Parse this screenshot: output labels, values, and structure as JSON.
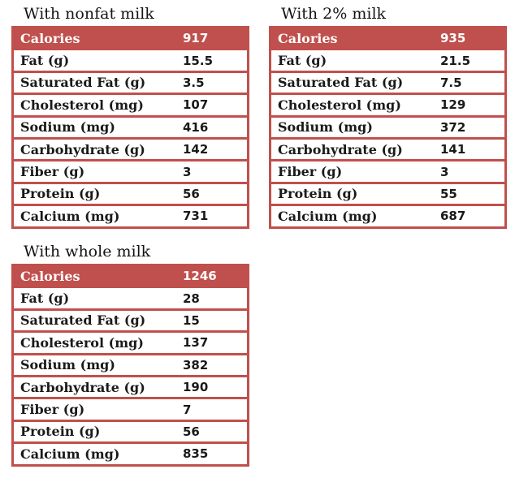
{
  "colors": {
    "accent": "#c0504d",
    "table_border": "#c0504d",
    "header_text": "#ffffff",
    "body_text": "#1a1a1a",
    "background": "#ffffff"
  },
  "chart_data": [
    {
      "type": "table",
      "title": "With nonfat milk",
      "rows": [
        {
          "label": "Calories",
          "value": 917
        },
        {
          "label": "Fat (g)",
          "value": 15.5
        },
        {
          "label": "Saturated Fat (g)",
          "value": 3.5
        },
        {
          "label": "Cholesterol (mg)",
          "value": 107
        },
        {
          "label": "Sodium (mg)",
          "value": 416
        },
        {
          "label": "Carbohydrate (g)",
          "value": 142
        },
        {
          "label": "Fiber (g)",
          "value": 3
        },
        {
          "label": "Protein (g)",
          "value": 56
        },
        {
          "label": "Calcium (mg)",
          "value": 731
        }
      ]
    },
    {
      "type": "table",
      "title": "With 2% milk",
      "rows": [
        {
          "label": "Calories",
          "value": 935
        },
        {
          "label": "Fat (g)",
          "value": 21.5
        },
        {
          "label": "Saturated Fat (g)",
          "value": 7.5
        },
        {
          "label": "Cholesterol (mg)",
          "value": 129
        },
        {
          "label": "Sodium (mg)",
          "value": 372
        },
        {
          "label": "Carbohydrate (g)",
          "value": 141
        },
        {
          "label": "Fiber (g)",
          "value": 3
        },
        {
          "label": "Protein (g)",
          "value": 55
        },
        {
          "label": "Calcium (mg)",
          "value": 687
        }
      ]
    },
    {
      "type": "table",
      "title": "With whole milk",
      "rows": [
        {
          "label": "Calories",
          "value": 1246
        },
        {
          "label": "Fat (g)",
          "value": 28
        },
        {
          "label": "Saturated Fat (g)",
          "value": 15
        },
        {
          "label": "Cholesterol (mg)",
          "value": 137
        },
        {
          "label": "Sodium (mg)",
          "value": 382
        },
        {
          "label": "Carbohydrate (g)",
          "value": 190
        },
        {
          "label": "Fiber (g)",
          "value": 7
        },
        {
          "label": "Protein (g)",
          "value": 56
        },
        {
          "label": "Calcium (mg)",
          "value": 835
        }
      ]
    }
  ]
}
